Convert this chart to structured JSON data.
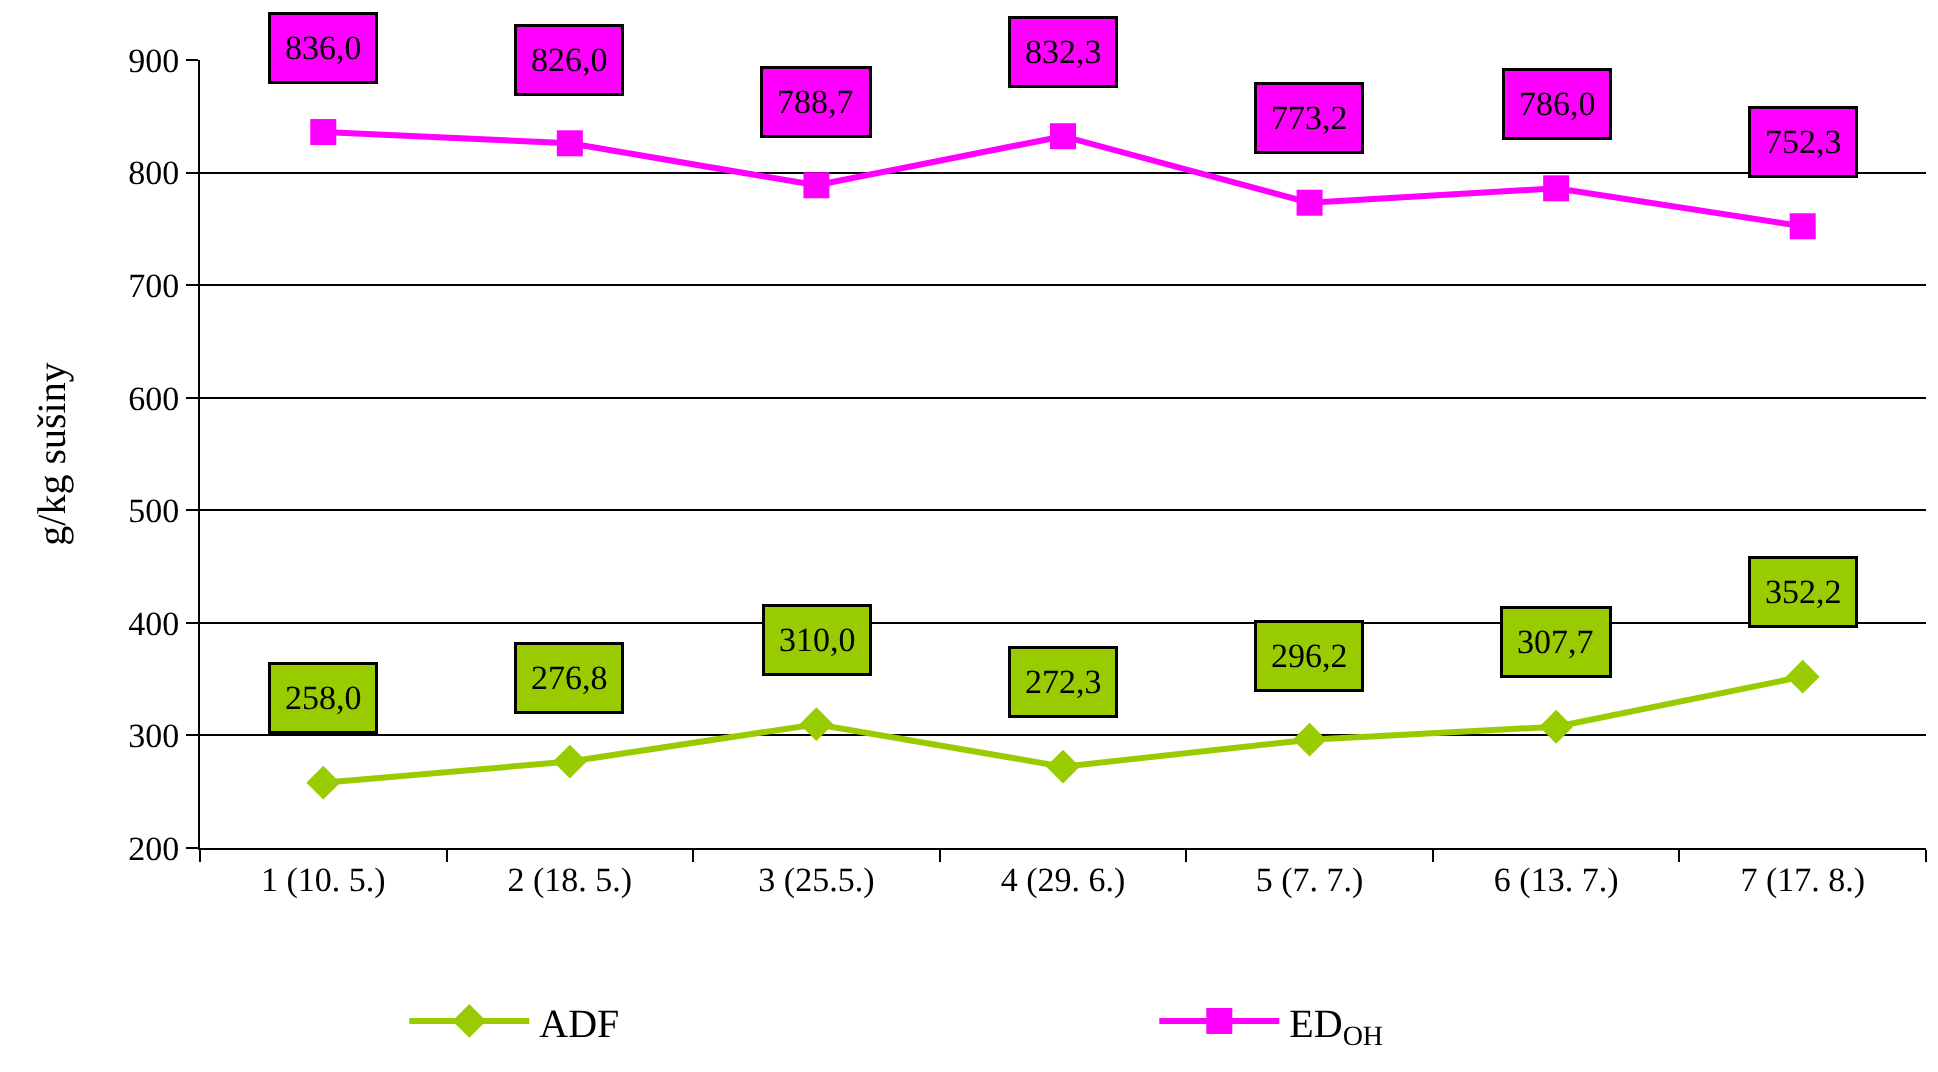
{
  "chart_data": {
    "type": "line",
    "ylabel": "g/kg sušiny",
    "categories": [
      "1 (10. 5.)",
      "2 (18. 5.)",
      "3 (25.5.)",
      "4 (29. 6.)",
      "5 (7. 7.)",
      "6 (13. 7.)",
      "7 (17. 8.)"
    ],
    "series": [
      {
        "name": "ADF",
        "color": "#99cc00",
        "marker": "diamond",
        "values": [
          258.0,
          276.8,
          310.0,
          272.3,
          296.2,
          307.7,
          352.2
        ],
        "value_labels": [
          "258,0",
          "276,8",
          "310,0",
          "272,3",
          "296,2",
          "307,7",
          "352,2"
        ]
      },
      {
        "name": "ED$_{OH}$",
        "color": "#ff00ff",
        "marker": "square",
        "values": [
          836.0,
          826.0,
          788.7,
          832.3,
          773.2,
          786.0,
          752.3
        ],
        "value_labels": [
          "836,0",
          "826,0",
          "788,7",
          "832,3",
          "773,2",
          "786,0",
          "752,3"
        ]
      }
    ],
    "ylim": [
      200,
      900
    ],
    "yticks": [
      200,
      300,
      400,
      500,
      600,
      700,
      800,
      900
    ],
    "grid": "y",
    "legend": "bottom",
    "line_style": "solid"
  }
}
